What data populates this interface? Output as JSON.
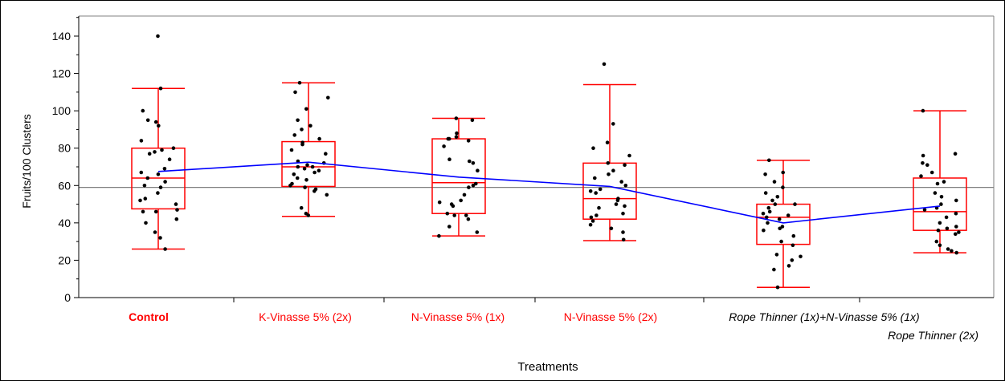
{
  "chart_data": {
    "type": "box",
    "xlabel": "Treatments",
    "ylabel": "Fruits/100 Clusters",
    "ylim": [
      0,
      150
    ],
    "yticks": [
      0,
      20,
      40,
      60,
      80,
      100,
      120,
      140
    ],
    "reference_line": 59,
    "colors": {
      "box": "#ff0000",
      "mean_line": "#0000ff",
      "reference": "#808080",
      "points": "#000000",
      "label_default": "#ff0000",
      "label_alt": "#000000"
    },
    "categories": [
      {
        "label": "Control",
        "bold": true,
        "italic": false,
        "color": "#ff0000",
        "min": 26,
        "q1": 47.5,
        "median": 64,
        "q3": 80,
        "max": 112,
        "mean": 67.5,
        "points": [
          140,
          112,
          100,
          95,
          94,
          92,
          84,
          80,
          79,
          78,
          77,
          74,
          69,
          67,
          66,
          64,
          62,
          60,
          59,
          56,
          53,
          52,
          50,
          47,
          46,
          46,
          42,
          40,
          35,
          32,
          26
        ]
      },
      {
        "label": "K-Vinasse 5% (2x)",
        "bold": false,
        "italic": false,
        "color": "#ff0000",
        "min": 43.5,
        "q1": 59.5,
        "median": 70,
        "q3": 83.5,
        "max": 115,
        "mean": 72.5,
        "points": [
          115,
          110,
          107,
          101,
          95,
          92,
          90,
          87,
          85,
          83,
          82,
          79,
          77,
          73,
          72,
          71,
          70,
          70,
          69,
          68,
          67,
          66,
          64,
          63,
          61,
          60,
          59,
          58,
          57,
          55,
          48,
          45,
          44
        ]
      },
      {
        "label": "N-Vinasse 5% (1x)",
        "bold": false,
        "italic": false,
        "color": "#ff0000",
        "min": 33,
        "q1": 45,
        "median": 61.5,
        "q3": 85,
        "max": 96,
        "mean": 64.5,
        "points": [
          96,
          95,
          88,
          86,
          85,
          85,
          84,
          81,
          74,
          73,
          72,
          68,
          61,
          60,
          59,
          55,
          52,
          51,
          50,
          49,
          45,
          44,
          44,
          42,
          38,
          35,
          33
        ]
      },
      {
        "label": "N-Vinasse 5% (2x)",
        "bold": false,
        "italic": false,
        "color": "#ff0000",
        "min": 30.5,
        "q1": 42,
        "median": 53,
        "q3": 72,
        "max": 114,
        "mean": 59.5,
        "points": [
          125,
          93,
          83,
          80,
          76,
          72,
          71,
          68,
          66,
          64,
          62,
          60,
          58,
          57,
          56,
          53,
          52,
          50,
          49,
          48,
          45,
          44,
          43,
          41,
          39,
          37,
          35,
          31
        ]
      },
      {
        "label": "Rope Thinner (1x)+N-Vinasse 5% (1x)",
        "bold": false,
        "italic": true,
        "color": "#000000",
        "min": 5.5,
        "q1": 28.5,
        "median": 43,
        "q3": 50,
        "max": 73.5,
        "mean": 40,
        "points": [
          73.5,
          67,
          66,
          62,
          59,
          56,
          54,
          52,
          50,
          50,
          48,
          46,
          45,
          44,
          43,
          42,
          40,
          38,
          37,
          36,
          33,
          30,
          28,
          23,
          22,
          20,
          17,
          15,
          5.5
        ]
      },
      {
        "label": "Rope Thinner (2x)",
        "bold": false,
        "italic": true,
        "color": "#000000",
        "min": 24,
        "q1": 36,
        "median": 46,
        "q3": 64,
        "max": 100,
        "mean": 49,
        "points": [
          100,
          77,
          76,
          72,
          71,
          67,
          65,
          62,
          61,
          56,
          54,
          52,
          50,
          48,
          47,
          45,
          43,
          40,
          38,
          37,
          36,
          35,
          34,
          30,
          28,
          26,
          25,
          24
        ]
      }
    ]
  }
}
